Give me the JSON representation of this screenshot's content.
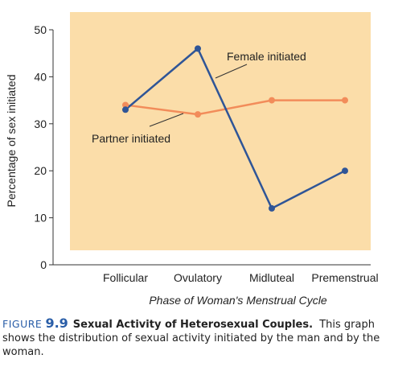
{
  "chart_data": {
    "type": "line",
    "categories": [
      "Follicular",
      "Ovulatory",
      "Midluteal",
      "Premenstrual"
    ],
    "series": [
      {
        "name": "Female initiated",
        "values": [
          33,
          46,
          12,
          20
        ],
        "color": "#2f5597"
      },
      {
        "name": "Partner initiated",
        "values": [
          34,
          32,
          35,
          35
        ],
        "color": "#f28c5a"
      }
    ],
    "xlabel": "Phase of Woman's Menstrual Cycle",
    "ylabel": "Percentage of sex initiated",
    "ylim": [
      0,
      50
    ],
    "yticks": [
      "0",
      "10",
      "20",
      "30",
      "40",
      "50"
    ],
    "plot_background": "#fbdda9",
    "grid": false
  },
  "caption": {
    "figure_word": "FIGURE",
    "figure_number": "9.9",
    "title": "Sexual Activity of Heterosexual Couples.",
    "text": "This graph shows the distribution of sexual activity initiated by the man and by the woman."
  }
}
